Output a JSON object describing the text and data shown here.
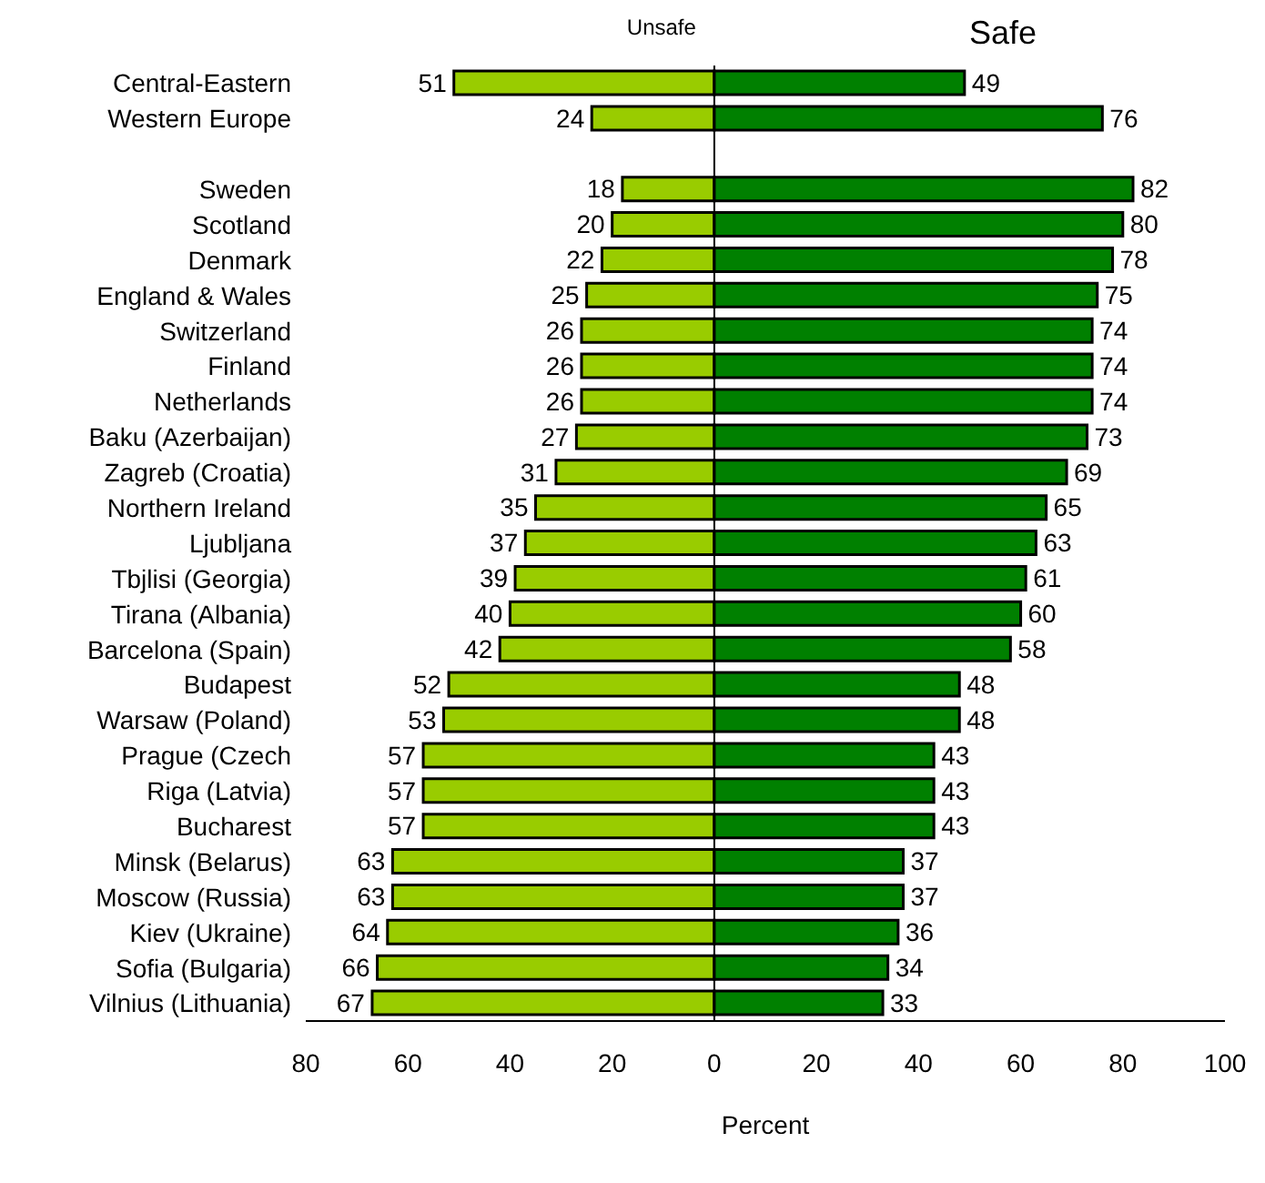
{
  "chart_data": {
    "type": "bar",
    "orientation": "horizontal",
    "xlabel": "Percent",
    "categories": [
      "Central-Eastern",
      "Western Europe",
      null,
      "Sweden",
      "Scotland",
      "Denmark",
      "England & Wales",
      "Switzerland",
      "Finland",
      "Netherlands",
      "Baku (Azerbaijan)",
      "Zagreb (Croatia)",
      "Northern Ireland",
      "Ljubljana",
      "Tbjlisi (Georgia)",
      "Tirana (Albania)",
      "Barcelona (Spain)",
      "Budapest",
      "Warsaw (Poland)",
      "Prague (Czech",
      "Riga (Latvia)",
      "Bucharest",
      "Minsk (Belarus)",
      "Moscow (Russia)",
      "Kiev (Ukraine)",
      "Sofia (Bulgaria)",
      "Vilnius (Lithuania)"
    ],
    "series": [
      {
        "name": "Unsafe",
        "color": "#99cc00",
        "values": [
          51,
          24,
          null,
          18,
          20,
          22,
          25,
          26,
          26,
          26,
          27,
          31,
          35,
          37,
          39,
          40,
          42,
          52,
          53,
          57,
          57,
          57,
          63,
          63,
          64,
          66,
          67
        ],
        "base": [
          -51,
          -24,
          null,
          -18,
          -20,
          -22,
          -25,
          -26,
          -26,
          -26,
          -27,
          -31,
          -35,
          -37,
          -39,
          -40,
          -42,
          -52,
          -53,
          -57,
          -57,
          -57,
          -63,
          -63,
          -64,
          -66,
          -67
        ]
      },
      {
        "name": "Safe",
        "color": "#008000",
        "values": [
          49,
          76,
          null,
          82,
          80,
          78,
          75,
          74,
          74,
          74,
          73,
          69,
          65,
          63,
          61,
          60,
          58,
          48,
          48,
          43,
          43,
          43,
          37,
          37,
          36,
          34,
          33
        ]
      }
    ],
    "xlim": [
      -80,
      100
    ],
    "xticks": [
      {
        "value": -80,
        "label": "80"
      },
      {
        "value": -60,
        "label": "60"
      },
      {
        "value": -40,
        "label": "40"
      },
      {
        "value": -20,
        "label": "20"
      },
      0,
      20,
      40,
      60,
      80,
      100
    ],
    "ref_lines": [
      {
        "axis": "x",
        "value": 0,
        "color": "#000000"
      }
    ],
    "data_labels": true,
    "legend": "top"
  }
}
